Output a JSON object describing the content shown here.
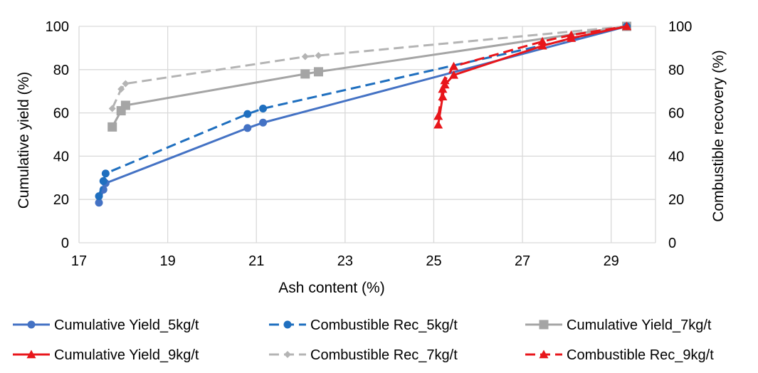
{
  "chart_data": {
    "type": "scatter",
    "title": "",
    "xlabel": "Ash content (%)",
    "ylabel": "Cumulative yield (%)",
    "y2label": "Combustible recovery (%)",
    "xlim": [
      17,
      30
    ],
    "ylim": [
      0,
      100
    ],
    "y2lim": [
      0,
      100
    ],
    "x_ticks": [
      "17",
      "19",
      "21",
      "23",
      "25",
      "27",
      "29"
    ],
    "y_ticks": [
      "0",
      "20",
      "40",
      "60",
      "80",
      "100"
    ],
    "y2_ticks": [
      "0",
      "20",
      "40",
      "60",
      "80",
      "100"
    ],
    "grid": true,
    "legend_position": "bottom",
    "series": [
      {
        "name": "Cumulative Yield_5kg/t",
        "color": "#4472C4",
        "line": "solid",
        "marker": "circle",
        "x": [
          17.45,
          17.55,
          17.6,
          20.8,
          21.15,
          29.35
        ],
        "y": [
          18.5,
          24.5,
          27.5,
          53,
          55.5,
          100
        ]
      },
      {
        "name": "Combustible Rec_5kg/t",
        "color": "#1F6FBF",
        "line": "dashed",
        "marker": "circle",
        "x": [
          17.45,
          17.55,
          17.6,
          20.8,
          21.15,
          29.35
        ],
        "y": [
          21.5,
          28.5,
          32,
          59.5,
          62,
          100
        ]
      },
      {
        "name": "Cumulative Yield_7kg/t",
        "color": "#A5A5A5",
        "line": "solid",
        "marker": "square",
        "x": [
          17.75,
          17.95,
          18.05,
          22.1,
          22.4,
          29.35
        ],
        "y": [
          53.5,
          61,
          63.5,
          78,
          79,
          100
        ]
      },
      {
        "name": "Cumulative Yield_9kg/t",
        "color": "#E8161B",
        "line": "solid",
        "marker": "triangle",
        "x": [
          25.1,
          25.2,
          25.25,
          25.45,
          27.45,
          28.1,
          29.35
        ],
        "y": [
          54.5,
          67.5,
          73,
          77.5,
          91,
          94.5,
          100
        ]
      },
      {
        "name": "Combustible Rec_7kg/t",
        "color": "#B4B4B4",
        "line": "dashed",
        "marker": "diamond",
        "x": [
          17.75,
          17.95,
          18.05,
          22.1,
          22.4,
          29.35
        ],
        "y": [
          62,
          71,
          73.5,
          86,
          86.5,
          100
        ]
      },
      {
        "name": "Combustible Rec_9kg/t",
        "color": "#E8161B",
        "line": "dashed",
        "marker": "triangle",
        "x": [
          25.1,
          25.2,
          25.25,
          25.45,
          27.45,
          28.1,
          29.35
        ],
        "y": [
          58.5,
          71,
          75,
          81.5,
          93,
          96,
          100
        ]
      }
    ]
  }
}
